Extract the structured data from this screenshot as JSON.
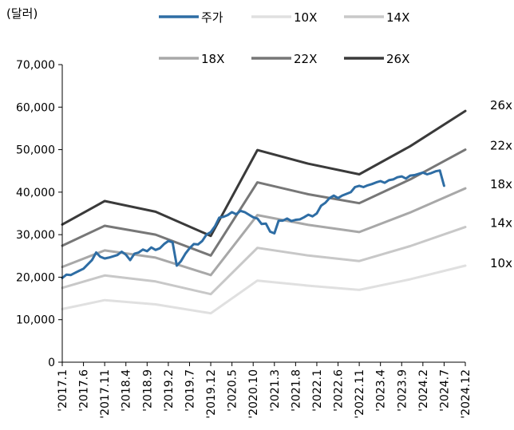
{
  "chart_data": {
    "type": "line",
    "unit_label": "(달러)",
    "ylim": [
      0,
      70000
    ],
    "yticks": [
      "0",
      "10,000",
      "20,000",
      "30,000",
      "40,000",
      "50,000",
      "60,000",
      "70,000"
    ],
    "ytick_values": [
      0,
      10000,
      20000,
      30000,
      40000,
      50000,
      60000,
      70000
    ],
    "xticks": [
      "'2017.1",
      "'2017.6",
      "'2017.11",
      "'2018.4",
      "'2018.9",
      "'2019.2",
      "'2019.7",
      "'2019.12",
      "'2020.5",
      "'2020.10",
      "'2021.3",
      "'2021.8",
      "'2022.1",
      "'2022.6",
      "'2022.11",
      "'2023.4",
      "'2023.9",
      "'2024.2",
      "'2024.7",
      "'2024.12"
    ],
    "x_range_months": [
      0,
      95
    ],
    "grid": false,
    "legend_position": "top",
    "series": [
      {
        "name": "주가",
        "color": "#2e6da4",
        "width": 3,
        "x": [
          0,
          1,
          2,
          3,
          4,
          5,
          6,
          7,
          8,
          9,
          10,
          11,
          12,
          13,
          14,
          15,
          16,
          17,
          18,
          19,
          20,
          21,
          22,
          23,
          24,
          25,
          26,
          27,
          28,
          29,
          30,
          31,
          32,
          33,
          34,
          35,
          36,
          37,
          38,
          39,
          40,
          41,
          42,
          43,
          44,
          45,
          46,
          47,
          48,
          49,
          50,
          51,
          52,
          53,
          54,
          55,
          56,
          57,
          58,
          59,
          60,
          61,
          62,
          63,
          64,
          65,
          66,
          67,
          68,
          69,
          70,
          71,
          72,
          73,
          74,
          75,
          76,
          77,
          78,
          79,
          80,
          81,
          82,
          83,
          84,
          85,
          86,
          87,
          88,
          89,
          90
        ],
        "y": [
          19800,
          20600,
          20500,
          21000,
          21500,
          22000,
          23000,
          24000,
          25800,
          24800,
          24400,
          24600,
          24900,
          25200,
          26000,
          25300,
          24000,
          25500,
          25800,
          26500,
          26100,
          27000,
          26400,
          26800,
          27800,
          28500,
          28200,
          22700,
          23800,
          25500,
          26800,
          27800,
          27700,
          28500,
          30000,
          30600,
          32000,
          34000,
          34200,
          34600,
          35300,
          34800,
          35600,
          35300,
          34700,
          34100,
          33800,
          32500,
          32600,
          30700,
          30300,
          33300,
          33300,
          33800,
          33200,
          33500,
          33600,
          34100,
          34700,
          34300,
          35000,
          36800,
          37500,
          38600,
          39200,
          38600,
          39200,
          39600,
          40000,
          41200,
          41500,
          41200,
          41600,
          41900,
          42300,
          42600,
          42200,
          42800,
          43000,
          43500,
          43700,
          43200,
          43900,
          44000,
          44300,
          44600,
          44200,
          44500,
          44900,
          45100,
          41500
        ]
      },
      {
        "name": "10X",
        "color": "#e0e0e0",
        "width": 3,
        "x": [
          0,
          10,
          22,
          35,
          46,
          58,
          70,
          82,
          95
        ],
        "y": [
          12500,
          14600,
          13600,
          11500,
          19200,
          18000,
          17000,
          19500,
          22700
        ]
      },
      {
        "name": "14X",
        "color": "#c8c8c8",
        "width": 3,
        "x": [
          0,
          10,
          22,
          35,
          46,
          58,
          70,
          82,
          95
        ],
        "y": [
          17500,
          20400,
          19000,
          16000,
          26900,
          25100,
          23800,
          27300,
          31800
        ]
      },
      {
        "name": "18X",
        "color": "#a8a8a8",
        "width": 3,
        "x": [
          0,
          10,
          22,
          35,
          46,
          58,
          70,
          82,
          95
        ],
        "y": [
          22400,
          26300,
          24600,
          20500,
          34600,
          32300,
          30600,
          35200,
          40900
        ]
      },
      {
        "name": "22X",
        "color": "#777777",
        "width": 3,
        "x": [
          0,
          10,
          22,
          35,
          46,
          58,
          70,
          82,
          95
        ],
        "y": [
          27400,
          32100,
          30000,
          25100,
          42300,
          39500,
          37400,
          43000,
          50000
        ]
      },
      {
        "name": "26X",
        "color": "#3a3a3a",
        "width": 3,
        "x": [
          0,
          10,
          22,
          35,
          46,
          58,
          70,
          82,
          95
        ],
        "y": [
          32400,
          37900,
          35400,
          29700,
          49900,
          46700,
          44200,
          50800,
          59100
        ]
      }
    ],
    "end_labels": [
      "26x",
      "22x",
      "18x",
      "14x",
      "10x"
    ]
  }
}
